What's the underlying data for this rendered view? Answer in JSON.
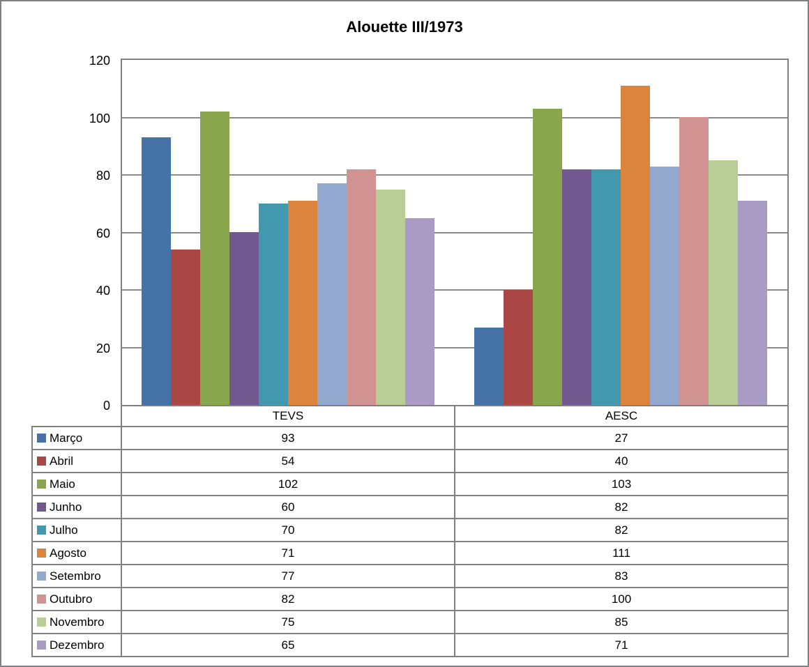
{
  "chart_data": {
    "type": "bar",
    "title": "Alouette III/1973",
    "categories": [
      "TEVS",
      "AESC"
    ],
    "series": [
      {
        "name": "Março",
        "color": "#4572A7",
        "values": [
          93,
          27
        ]
      },
      {
        "name": "Abril",
        "color": "#AA4643",
        "values": [
          54,
          40
        ]
      },
      {
        "name": "Maio",
        "color": "#89A54E",
        "values": [
          102,
          103
        ]
      },
      {
        "name": "Junho",
        "color": "#71588F",
        "values": [
          60,
          82
        ]
      },
      {
        "name": "Julho",
        "color": "#4198AF",
        "values": [
          70,
          82
        ]
      },
      {
        "name": "Agosto",
        "color": "#DB843D",
        "values": [
          71,
          111
        ]
      },
      {
        "name": "Setembro",
        "color": "#93A9D0",
        "values": [
          77,
          83
        ]
      },
      {
        "name": "Outubro",
        "color": "#D19392",
        "values": [
          82,
          100
        ]
      },
      {
        "name": "Novembro",
        "color": "#B9CD96",
        "values": [
          75,
          85
        ]
      },
      {
        "name": "Dezembro",
        "color": "#A99BC4",
        "values": [
          65,
          71
        ]
      }
    ],
    "ylabel": "",
    "xlabel": "",
    "ylim": [
      0,
      120
    ],
    "yticks": [
      0,
      20,
      40,
      60,
      80,
      100,
      120
    ],
    "grid": true,
    "legend_position": "table-left",
    "data_table_shown": true
  },
  "colors": {
    "axis_border": "#808080",
    "gridline": "#8a8a8a",
    "background": "#ffffff",
    "text": "#000000"
  }
}
